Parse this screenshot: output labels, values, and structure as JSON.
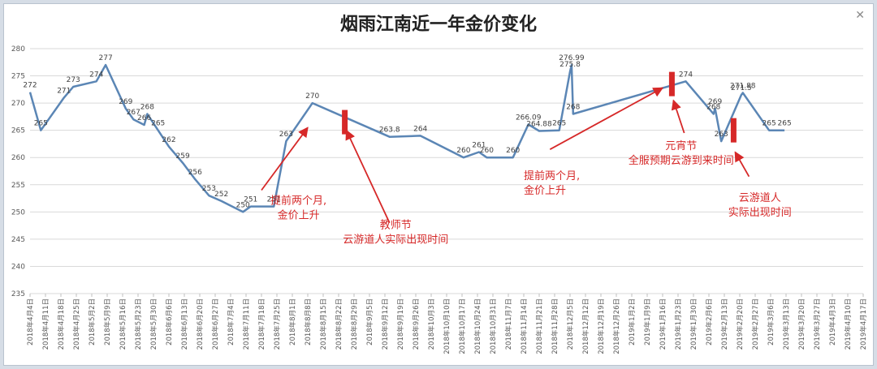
{
  "window": {
    "close_glyph": "✕"
  },
  "chart_data": {
    "type": "line",
    "title": "烟雨江南近一年金价变化",
    "xlabel": "",
    "ylabel": "",
    "ylim": [
      235,
      280
    ],
    "yticks": [
      235,
      240,
      245,
      250,
      255,
      260,
      265,
      270,
      275,
      280
    ],
    "grid": true,
    "series_color": "#5b86b5",
    "annotation_color": "#d62828",
    "categories": [
      "2018年4月4日",
      "2018年4月11日",
      "2018年4月18日",
      "2018年4月25日",
      "2018年5月2日",
      "2018年5月9日",
      "2018年5月16日",
      "2018年5月23日",
      "2018年5月30日",
      "2018年6月6日",
      "2018年6月13日",
      "2018年6月20日",
      "2018年6月27日",
      "2018年7月4日",
      "2018年7月11日",
      "2018年7月18日",
      "2018年7月25日",
      "2018年8月1日",
      "2018年8月8日",
      "2018年8月15日",
      "2018年8月22日",
      "2018年8月29日",
      "2018年9月5日",
      "2018年9月12日",
      "2018年9月19日",
      "2018年9月26日",
      "2018年10月3日",
      "2018年10月10日",
      "2018年10月17日",
      "2018年10月24日",
      "2018年10月31日",
      "2018年11月7日",
      "2018年11月14日",
      "2018年11月21日",
      "2018年11月28日",
      "2018年12月5日",
      "2018年12月12日",
      "2018年12月19日",
      "2018年12月26日",
      "2019年1月2日",
      "2019年1月9日",
      "2019年1月16日",
      "2019年1月23日",
      "2019年1月30日",
      "2019年2月6日",
      "2019年2月13日",
      "2019年2月20日",
      "2019年2月27日",
      "2019年3月6日",
      "2019年3月13日",
      "2019年3月20日",
      "2019年3月27日",
      "2019年4月3日",
      "2019年4月10日",
      "2019年4月17日"
    ],
    "points": [
      {
        "x": 0,
        "y": 272,
        "label": "272"
      },
      {
        "x": 0.7,
        "y": 265,
        "label": "265"
      },
      {
        "x": 2.2,
        "y": 271,
        "label": "271"
      },
      {
        "x": 2.8,
        "y": 273,
        "label": "273"
      },
      {
        "x": 4.3,
        "y": 274,
        "label": "274"
      },
      {
        "x": 4.9,
        "y": 277,
        "label": "277"
      },
      {
        "x": 6.2,
        "y": 269,
        "label": "269"
      },
      {
        "x": 6.7,
        "y": 267,
        "label": "267"
      },
      {
        "x": 7.4,
        "y": 266,
        "label": "266"
      },
      {
        "x": 7.6,
        "y": 268,
        "label": "268"
      },
      {
        "x": 8.3,
        "y": 265,
        "label": "265"
      },
      {
        "x": 9.0,
        "y": 262,
        "label": "262"
      },
      {
        "x": 9.9,
        "y": 259,
        "label": "259"
      },
      {
        "x": 10.7,
        "y": 256,
        "label": "256"
      },
      {
        "x": 11.6,
        "y": 253,
        "label": "253"
      },
      {
        "x": 12.4,
        "y": 252,
        "label": "252"
      },
      {
        "x": 13.8,
        "y": 250,
        "label": "250"
      },
      {
        "x": 14.3,
        "y": 251,
        "label": "251"
      },
      {
        "x": 15.8,
        "y": 251,
        "label": "251"
      },
      {
        "x": 16.6,
        "y": 263,
        "label": "263"
      },
      {
        "x": 18.3,
        "y": 270,
        "label": "270"
      },
      {
        "x": 23.3,
        "y": 263.8,
        "label": "263.8"
      },
      {
        "x": 25.3,
        "y": 264,
        "label": "264"
      },
      {
        "x": 28.1,
        "y": 260,
        "label": "260"
      },
      {
        "x": 29.1,
        "y": 261,
        "label": "261"
      },
      {
        "x": 29.6,
        "y": 260,
        "label": "260"
      },
      {
        "x": 31.3,
        "y": 260,
        "label": "260"
      },
      {
        "x": 32.3,
        "y": 266.09,
        "label": "266.09"
      },
      {
        "x": 33.0,
        "y": 264.88,
        "label": "264.88"
      },
      {
        "x": 34.3,
        "y": 265,
        "label": "265"
      },
      {
        "x": 35.0,
        "y": 275.8,
        "label": "275.8"
      },
      {
        "x": 35.1,
        "y": 276.99,
        "label": "276.99"
      },
      {
        "x": 35.2,
        "y": 268,
        "label": "268"
      },
      {
        "x": 42.5,
        "y": 274,
        "label": "274"
      },
      {
        "x": 44.3,
        "y": 268,
        "label": "268"
      },
      {
        "x": 44.4,
        "y": 269,
        "label": "269"
      },
      {
        "x": 44.8,
        "y": 263,
        "label": "263"
      },
      {
        "x": 46.1,
        "y": 271.5,
        "label": "271.5"
      },
      {
        "x": 46.2,
        "y": 271.88,
        "label": "271.88"
      },
      {
        "x": 47.9,
        "y": 265,
        "label": "265"
      },
      {
        "x": 48.9,
        "y": 265,
        "label": "265"
      }
    ],
    "markers": [
      {
        "x": 20.4,
        "y": 266.5
      },
      {
        "x": 41.6,
        "y": 273.5
      },
      {
        "x": 45.6,
        "y": 265
      }
    ],
    "arrows": [
      {
        "x1": 15.0,
        "y1": 254.0,
        "x2": 18.0,
        "y2": 265.5
      },
      {
        "x1": 23.3,
        "y1": 248.0,
        "x2": 20.5,
        "y2": 265.0
      },
      {
        "x1": 33.7,
        "y1": 261.5,
        "x2": 41.0,
        "y2": 272.8
      },
      {
        "x1": 42.4,
        "y1": 264.5,
        "x2": 41.7,
        "y2": 270.5
      },
      {
        "x1": 46.6,
        "y1": 256.5,
        "x2": 45.7,
        "y2": 261.0
      }
    ],
    "annotations": [
      {
        "lines": [
          "提前两个月,",
          "金价上升"
        ],
        "x": 17.4,
        "y": 251.5,
        "anchor": "middle"
      },
      {
        "lines": [
          "教师节",
          "云游道人实际出现时间"
        ],
        "x": 23.7,
        "y": 247.0,
        "anchor": "middle"
      },
      {
        "lines": [
          "提前两个月,",
          "金价上升"
        ],
        "x": 32.0,
        "y": 256.0,
        "anchor": "start"
      },
      {
        "lines": [
          "元宵节",
          "全服预期云游到来时间"
        ],
        "x": 42.2,
        "y": 261.5,
        "anchor": "middle"
      },
      {
        "lines": [
          "云游道人",
          "实际出现时间"
        ],
        "x": 47.3,
        "y": 252.0,
        "anchor": "middle"
      }
    ]
  }
}
